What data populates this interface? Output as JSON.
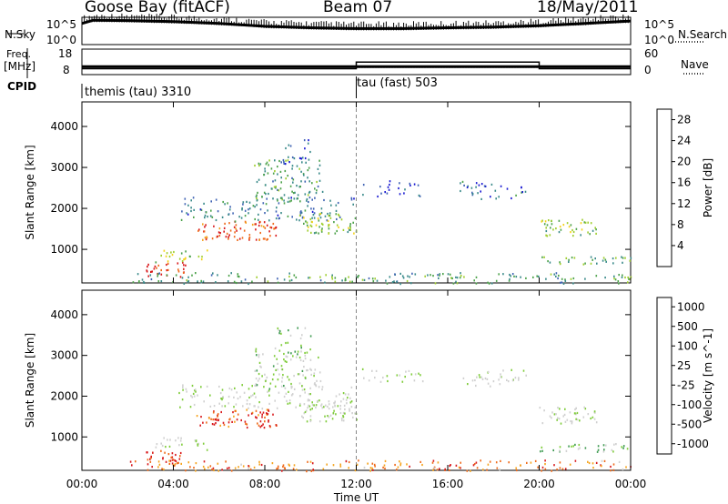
{
  "header": {
    "station": "Goose Bay (fitACF)",
    "beam": "Beam 07",
    "date": "18/May/2011"
  },
  "panels": {
    "nsky_label": "N.Sky",
    "nsearch_label": "N.Search",
    "freq_label": "Freq.",
    "freq_unit": "[MHz]",
    "nave_label": "Nave",
    "cpid_label": "CPID",
    "count_ticks": [
      "10^5",
      "10^0"
    ],
    "freq_ticks": [
      "18",
      "8"
    ],
    "nave_ticks": [
      "60",
      "0"
    ],
    "cpid_segments": [
      {
        "name": "themis (tau) 3310",
        "start_hour": 0,
        "end_hour": 12
      },
      {
        "name": "tau (fast) 503",
        "start_hour": 12,
        "end_hour": 24
      }
    ]
  },
  "axes": {
    "xlabel": "Time UT",
    "ylabel": "Slant Range [km]"
  },
  "colors": {
    "power": [
      "#1919d2",
      "#3f63b4",
      "#3a8a8a",
      "#4ca24a",
      "#9fce2f",
      "#f4d21a",
      "#f2a11c",
      "#ef6a1a",
      "#d8181b"
    ],
    "velocity": [
      "#d8181b",
      "#ef6a1a",
      "#f6a31c",
      "#d0d0d0",
      "#d0d0d0",
      "#7fcc3a",
      "#3f9b52",
      "#3f63b4",
      "#1919d2"
    ]
  },
  "chart_data": [
    {
      "type": "line",
      "title": "N.Sky / N.Search",
      "x_range": [
        0,
        24
      ],
      "ylim": [
        "10^0",
        "10^5"
      ],
      "series": [
        {
          "name": "N.Sky",
          "x": [
            0,
            0.5,
            2,
            4,
            6,
            8,
            10,
            12,
            14,
            16,
            18,
            20,
            22,
            24
          ],
          "y": [
            12000,
            60000,
            50000,
            30000,
            12000,
            3000,
            1500,
            1000,
            1000,
            1500,
            2000,
            4000,
            12000,
            40000
          ]
        }
      ]
    },
    {
      "type": "line",
      "title": "Freq. [MHz] / Nave",
      "x_range": [
        0,
        24
      ],
      "ylim_freq": [
        8,
        18
      ],
      "ylim_nave": [
        0,
        60
      ],
      "series": [
        {
          "name": "Freq.",
          "x": [
            0,
            24
          ],
          "y": [
            10.5,
            10.5
          ]
        },
        {
          "name": "Nave",
          "x": [
            0,
            12,
            12,
            20,
            20,
            24
          ],
          "y": [
            9,
            9,
            28,
            28,
            9,
            9
          ]
        }
      ]
    },
    {
      "type": "heatmap",
      "title": "Power [dB]",
      "xlabel": "Time UT",
      "ylabel": "Slant Range [km]",
      "x_range": [
        0,
        24
      ],
      "y_range": [
        180,
        4600
      ],
      "x_ticks": [
        "00:00",
        "04:00",
        "08:00",
        "12:00",
        "16:00",
        "20:00",
        "00:00"
      ],
      "y_ticks": [
        1000,
        2000,
        3000,
        4000
      ],
      "colorbar_label": "Power [dB]",
      "colorbar_ticks": [
        4,
        8,
        12,
        16,
        20,
        24,
        28
      ],
      "colorbar_range": [
        0,
        30
      ]
    },
    {
      "type": "heatmap",
      "title": "Velocity [m s^-1]",
      "xlabel": "Time UT",
      "ylabel": "Slant Range [km]",
      "x_range": [
        0,
        24
      ],
      "y_range": [
        180,
        4600
      ],
      "x_ticks": [
        "00:00",
        "04:00",
        "08:00",
        "12:00",
        "16:00",
        "20:00",
        "00:00"
      ],
      "y_ticks": [
        1000,
        2000,
        3000,
        4000
      ],
      "colorbar_label": "Velocity [m s^-1]",
      "colorbar_ticks": [
        -1000,
        -500,
        -100,
        -25,
        25,
        100,
        500,
        1000
      ]
    }
  ]
}
